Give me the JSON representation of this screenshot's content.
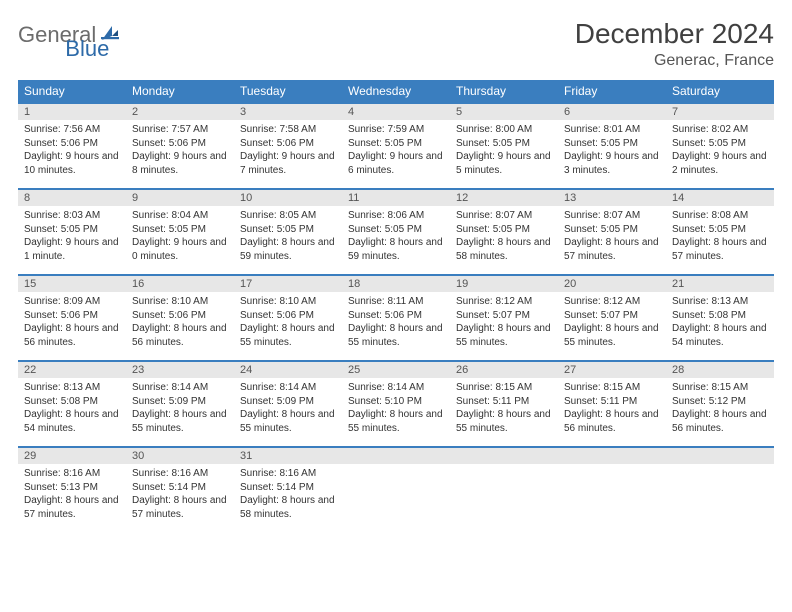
{
  "logo": {
    "word1": "General",
    "word2": "Blue"
  },
  "title": "December 2024",
  "location": "Generac, France",
  "colors": {
    "header_bg": "#3a7ebf",
    "header_fg": "#ffffff",
    "daynum_bg": "#e7e7e7",
    "row_border": "#3a7ebf",
    "text": "#333333",
    "logo_gray": "#6c6c6c",
    "logo_blue": "#2d6aa8"
  },
  "dayHeaders": [
    "Sunday",
    "Monday",
    "Tuesday",
    "Wednesday",
    "Thursday",
    "Friday",
    "Saturday"
  ],
  "days": [
    {
      "n": 1,
      "sr": "7:56 AM",
      "ss": "5:06 PM",
      "dl": "9 hours and 10 minutes."
    },
    {
      "n": 2,
      "sr": "7:57 AM",
      "ss": "5:06 PM",
      "dl": "9 hours and 8 minutes."
    },
    {
      "n": 3,
      "sr": "7:58 AM",
      "ss": "5:06 PM",
      "dl": "9 hours and 7 minutes."
    },
    {
      "n": 4,
      "sr": "7:59 AM",
      "ss": "5:05 PM",
      "dl": "9 hours and 6 minutes."
    },
    {
      "n": 5,
      "sr": "8:00 AM",
      "ss": "5:05 PM",
      "dl": "9 hours and 5 minutes."
    },
    {
      "n": 6,
      "sr": "8:01 AM",
      "ss": "5:05 PM",
      "dl": "9 hours and 3 minutes."
    },
    {
      "n": 7,
      "sr": "8:02 AM",
      "ss": "5:05 PM",
      "dl": "9 hours and 2 minutes."
    },
    {
      "n": 8,
      "sr": "8:03 AM",
      "ss": "5:05 PM",
      "dl": "9 hours and 1 minute."
    },
    {
      "n": 9,
      "sr": "8:04 AM",
      "ss": "5:05 PM",
      "dl": "9 hours and 0 minutes."
    },
    {
      "n": 10,
      "sr": "8:05 AM",
      "ss": "5:05 PM",
      "dl": "8 hours and 59 minutes."
    },
    {
      "n": 11,
      "sr": "8:06 AM",
      "ss": "5:05 PM",
      "dl": "8 hours and 59 minutes."
    },
    {
      "n": 12,
      "sr": "8:07 AM",
      "ss": "5:05 PM",
      "dl": "8 hours and 58 minutes."
    },
    {
      "n": 13,
      "sr": "8:07 AM",
      "ss": "5:05 PM",
      "dl": "8 hours and 57 minutes."
    },
    {
      "n": 14,
      "sr": "8:08 AM",
      "ss": "5:05 PM",
      "dl": "8 hours and 57 minutes."
    },
    {
      "n": 15,
      "sr": "8:09 AM",
      "ss": "5:06 PM",
      "dl": "8 hours and 56 minutes."
    },
    {
      "n": 16,
      "sr": "8:10 AM",
      "ss": "5:06 PM",
      "dl": "8 hours and 56 minutes."
    },
    {
      "n": 17,
      "sr": "8:10 AM",
      "ss": "5:06 PM",
      "dl": "8 hours and 55 minutes."
    },
    {
      "n": 18,
      "sr": "8:11 AM",
      "ss": "5:06 PM",
      "dl": "8 hours and 55 minutes."
    },
    {
      "n": 19,
      "sr": "8:12 AM",
      "ss": "5:07 PM",
      "dl": "8 hours and 55 minutes."
    },
    {
      "n": 20,
      "sr": "8:12 AM",
      "ss": "5:07 PM",
      "dl": "8 hours and 55 minutes."
    },
    {
      "n": 21,
      "sr": "8:13 AM",
      "ss": "5:08 PM",
      "dl": "8 hours and 54 minutes."
    },
    {
      "n": 22,
      "sr": "8:13 AM",
      "ss": "5:08 PM",
      "dl": "8 hours and 54 minutes."
    },
    {
      "n": 23,
      "sr": "8:14 AM",
      "ss": "5:09 PM",
      "dl": "8 hours and 55 minutes."
    },
    {
      "n": 24,
      "sr": "8:14 AM",
      "ss": "5:09 PM",
      "dl": "8 hours and 55 minutes."
    },
    {
      "n": 25,
      "sr": "8:14 AM",
      "ss": "5:10 PM",
      "dl": "8 hours and 55 minutes."
    },
    {
      "n": 26,
      "sr": "8:15 AM",
      "ss": "5:11 PM",
      "dl": "8 hours and 55 minutes."
    },
    {
      "n": 27,
      "sr": "8:15 AM",
      "ss": "5:11 PM",
      "dl": "8 hours and 56 minutes."
    },
    {
      "n": 28,
      "sr": "8:15 AM",
      "ss": "5:12 PM",
      "dl": "8 hours and 56 minutes."
    },
    {
      "n": 29,
      "sr": "8:16 AM",
      "ss": "5:13 PM",
      "dl": "8 hours and 57 minutes."
    },
    {
      "n": 30,
      "sr": "8:16 AM",
      "ss": "5:14 PM",
      "dl": "8 hours and 57 minutes."
    },
    {
      "n": 31,
      "sr": "8:16 AM",
      "ss": "5:14 PM",
      "dl": "8 hours and 58 minutes."
    }
  ],
  "labels": {
    "sunrise": "Sunrise:",
    "sunset": "Sunset:",
    "daylight": "Daylight:"
  },
  "layout": {
    "startOffset": 0,
    "totalCells": 35,
    "cols": 7
  }
}
